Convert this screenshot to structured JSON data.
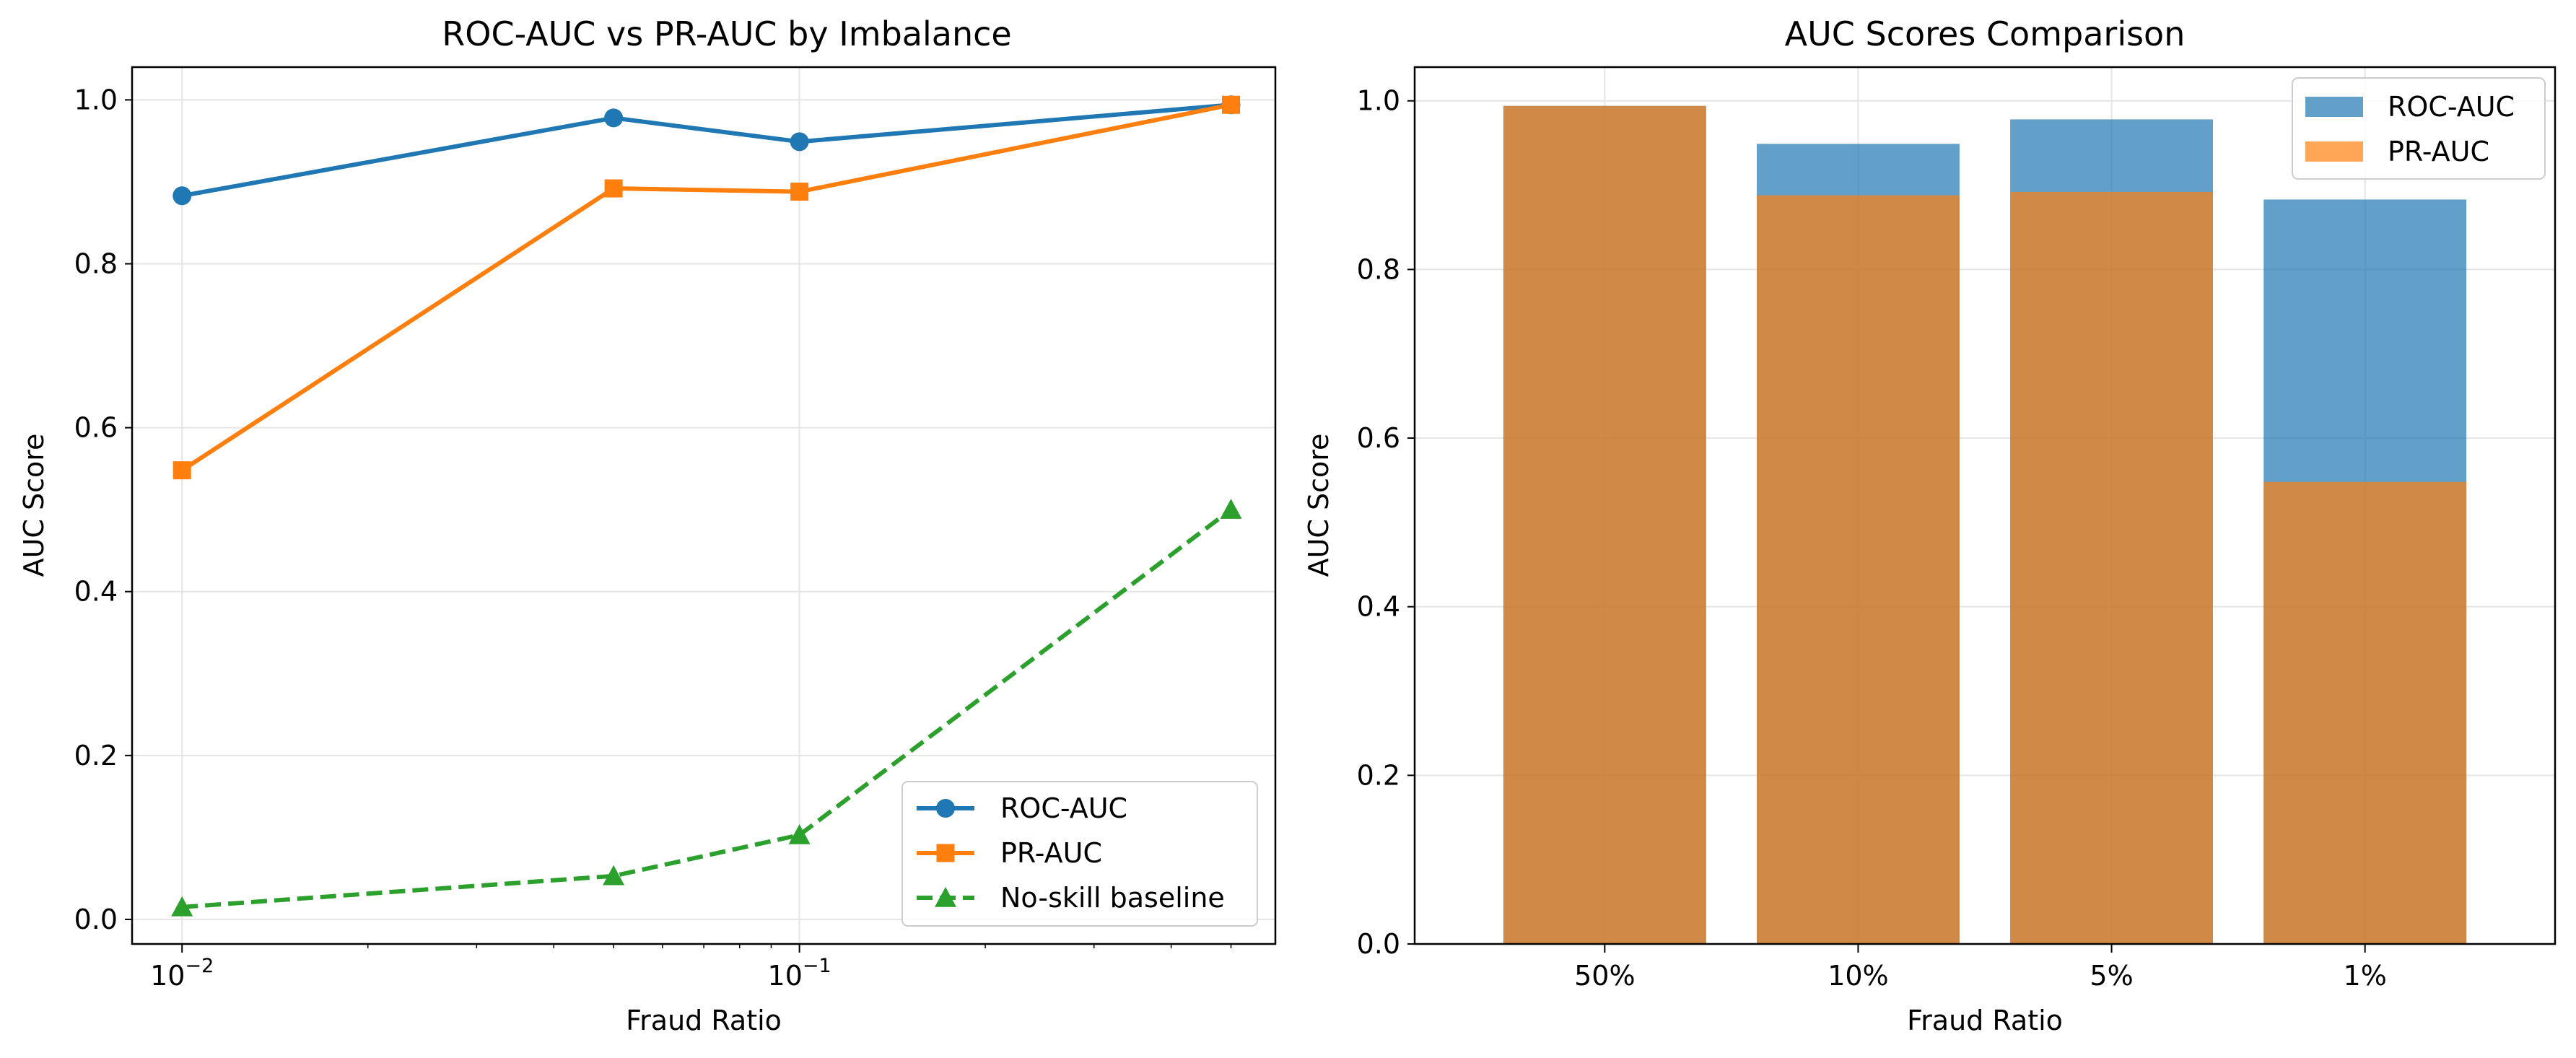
{
  "chart_data": [
    {
      "type": "line",
      "title": "ROC-AUC vs PR-AUC by Imbalance",
      "xlabel": "Fraud Ratio",
      "ylabel": "AUC Score",
      "xscale": "log",
      "xlim": [
        0.0083,
        0.59
      ],
      "ylim": [
        -0.03,
        1.04
      ],
      "x": [
        0.01,
        0.05,
        0.1,
        0.5
      ],
      "xticks": [
        {
          "value": 0.01,
          "base": "10",
          "exp": "−2"
        },
        {
          "value": 0.1,
          "base": "10",
          "exp": "−1"
        }
      ],
      "yticks": [
        "0.0",
        "0.2",
        "0.4",
        "0.6",
        "0.8",
        "1.0"
      ],
      "grid": true,
      "legend_position": "lower-right",
      "series": [
        {
          "name": "ROC-AUC",
          "values": [
            0.883,
            0.978,
            0.949,
            0.994
          ],
          "color": "#1f77b4",
          "marker": "circle",
          "line": "solid"
        },
        {
          "name": "PR-AUC",
          "values": [
            0.548,
            0.892,
            0.888,
            0.994
          ],
          "color": "#ff7f0e",
          "marker": "square",
          "line": "solid"
        },
        {
          "name": "No-skill baseline",
          "values": [
            0.015,
            0.053,
            0.103,
            0.5
          ],
          "color": "#2ca02c",
          "marker": "triangle",
          "line": "dashed"
        }
      ]
    },
    {
      "type": "bar",
      "title": "AUC Scores Comparison",
      "xlabel": "Fraud Ratio",
      "ylabel": "AUC Score",
      "ylim": [
        0,
        1.04
      ],
      "yticks": [
        "0.0",
        "0.2",
        "0.4",
        "0.6",
        "0.8",
        "1.0"
      ],
      "categories": [
        "50%",
        "10%",
        "5%",
        "1%"
      ],
      "grid": true,
      "legend_position": "top-right",
      "series": [
        {
          "name": "ROC-AUC",
          "values": [
            0.994,
            0.949,
            0.978,
            0.883
          ],
          "color": "#1f77b4",
          "alpha": 0.7
        },
        {
          "name": "PR-AUC",
          "values": [
            0.994,
            0.888,
            0.892,
            0.548
          ],
          "color": "#ff7f0e",
          "alpha": 0.7
        }
      ]
    }
  ]
}
